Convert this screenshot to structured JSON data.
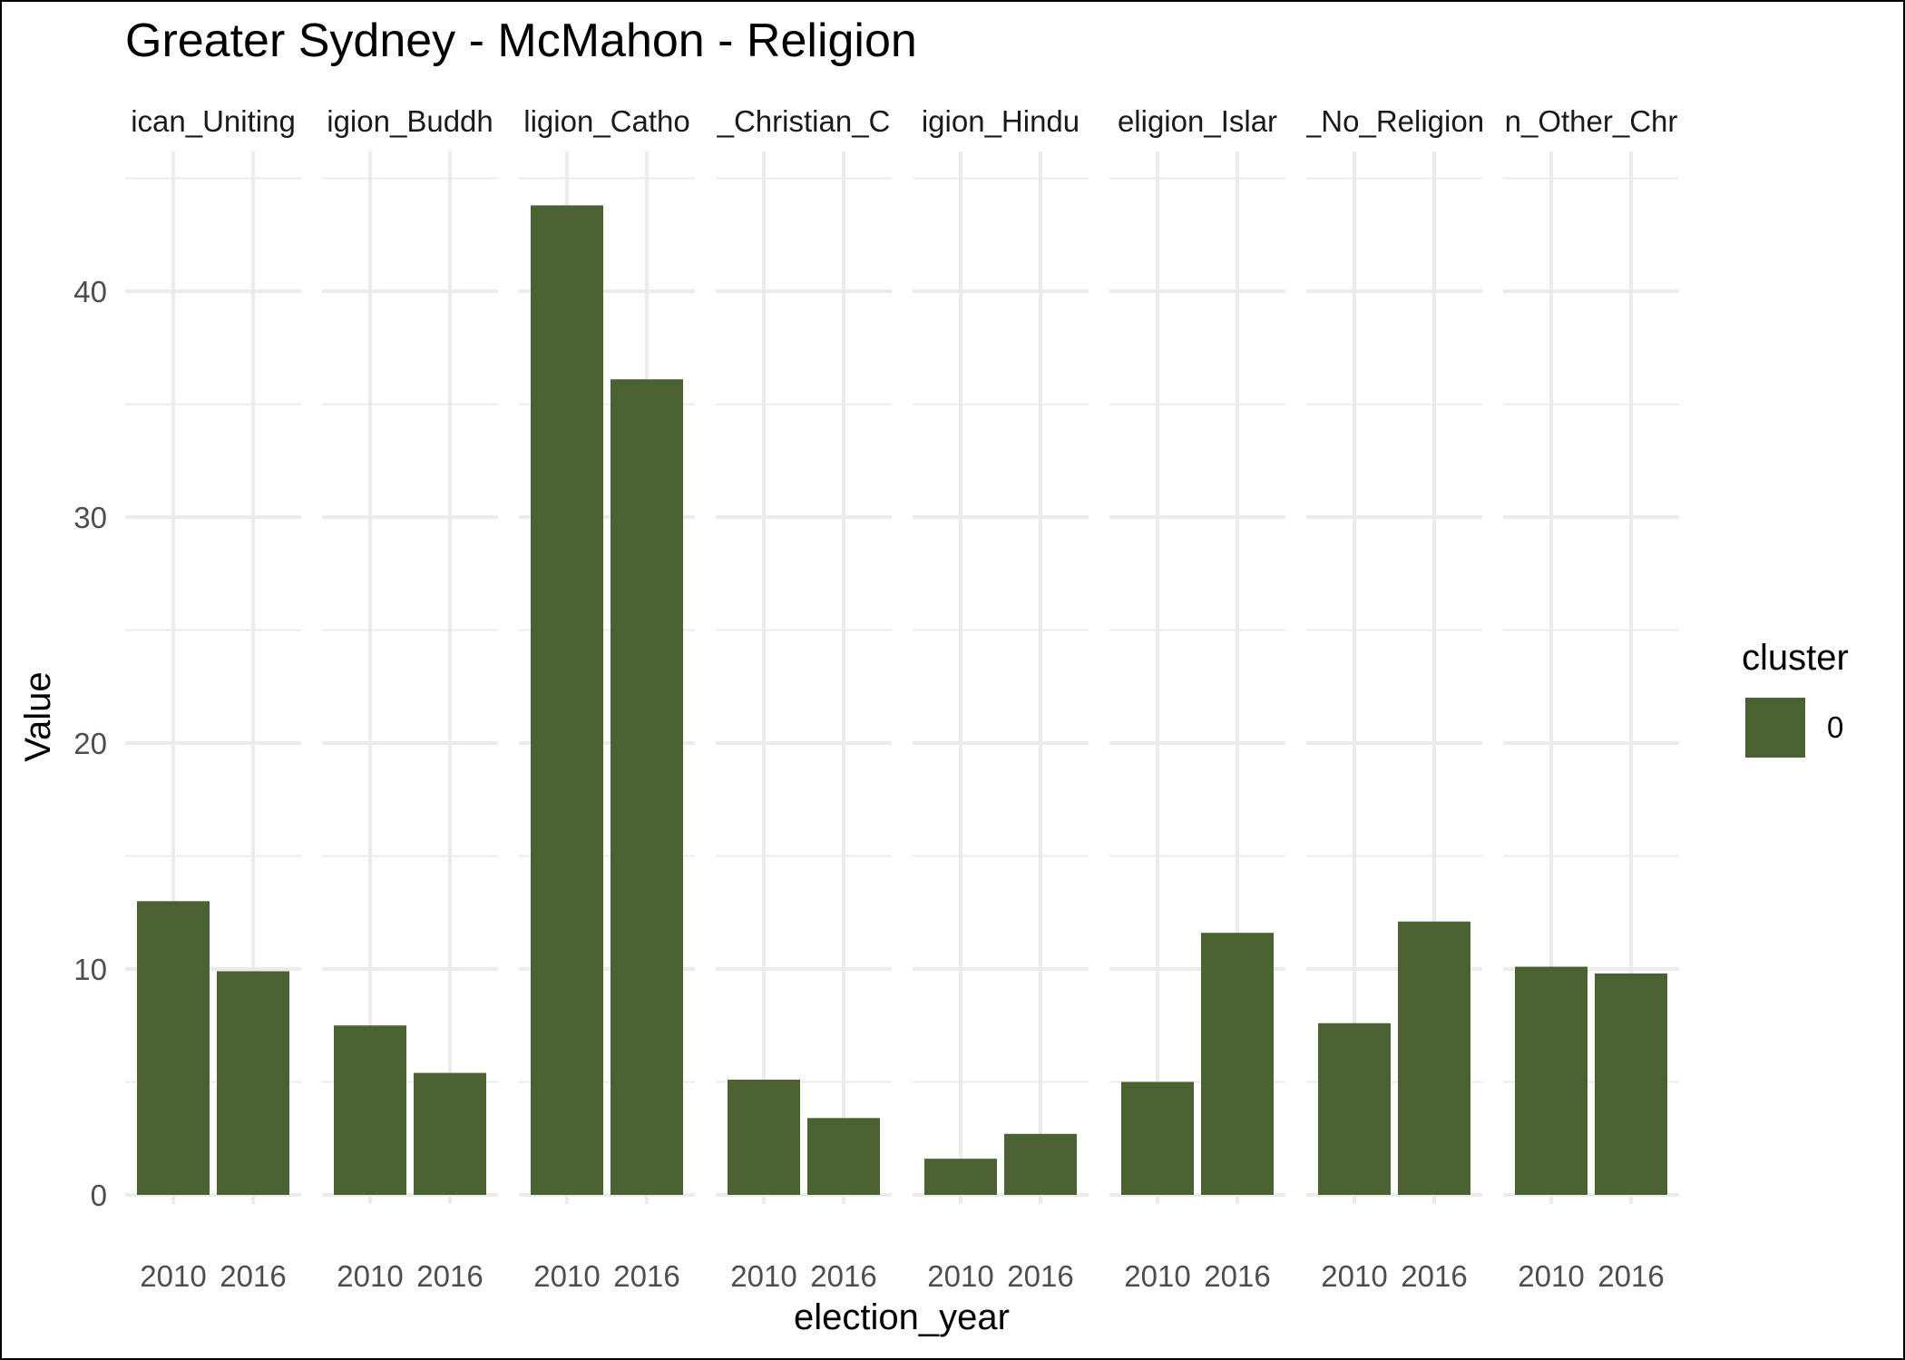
{
  "chart_data": {
    "type": "bar",
    "title": "Greater Sydney - McMahon - Religion",
    "xlabel": "election_year",
    "ylabel": "Value",
    "ylim": [
      0,
      45
    ],
    "y_ticks": [
      "0",
      "10",
      "20",
      "30",
      "40"
    ],
    "categories": [
      "2010",
      "2016"
    ],
    "facets": [
      {
        "label": "Religion_Anglican_Uniting",
        "visible_label": "ican_Uniting",
        "values": [
          13.0,
          9.9
        ]
      },
      {
        "label": "Religion_Buddhism",
        "visible_label": "igion_Buddh",
        "values": [
          7.5,
          5.4
        ]
      },
      {
        "label": "Religion_Catholic",
        "visible_label": "ligion_Catho",
        "values": [
          43.8,
          36.1
        ]
      },
      {
        "label": "Religion_Christian_Other",
        "visible_label": "_Christian_C",
        "values": [
          5.1,
          3.4
        ]
      },
      {
        "label": "Religion_Hinduism",
        "visible_label": "igion_Hindu",
        "values": [
          1.6,
          2.7
        ]
      },
      {
        "label": "Religion_Islam",
        "visible_label": "eligion_Islar",
        "values": [
          5.0,
          11.6
        ]
      },
      {
        "label": "Religion_No_Religion",
        "visible_label": "_No_Religion",
        "values": [
          7.6,
          12.1
        ]
      },
      {
        "label": "Religion_Other_Christian",
        "visible_label": "n_Other_Chr",
        "values": [
          10.1,
          9.8
        ]
      }
    ],
    "series": [
      {
        "name": "0",
        "color": "#4a6131"
      }
    ],
    "legend": {
      "title": "cluster",
      "position": "right"
    },
    "grid": true
  }
}
